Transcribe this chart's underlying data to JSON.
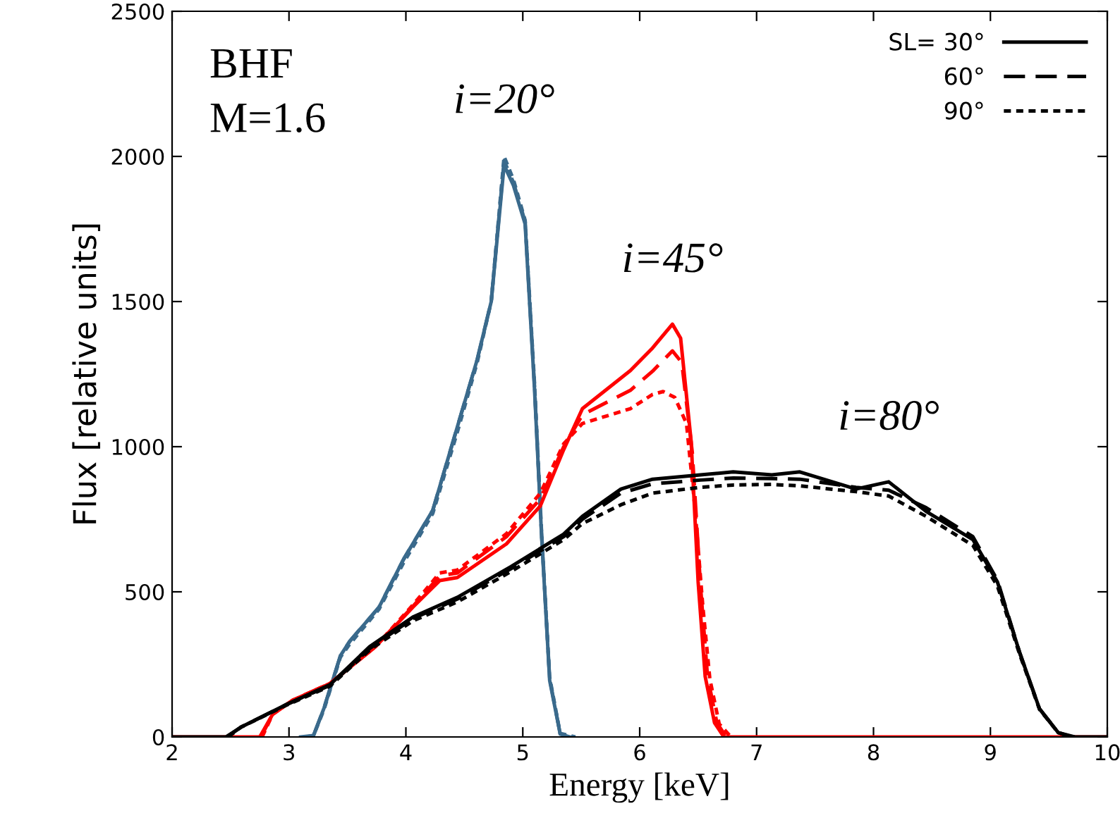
{
  "chart_data": {
    "type": "line",
    "xlabel": "Energy [keV]",
    "ylabel": "Flux [relative units]",
    "xlim": [
      2,
      10
    ],
    "ylim": [
      0,
      2500
    ],
    "xticks": [
      2,
      3,
      4,
      5,
      6,
      7,
      8,
      9,
      10
    ],
    "yticks": [
      0,
      500,
      1000,
      1500,
      2000,
      2500
    ],
    "grid": false,
    "legend": "top right",
    "marker": "none",
    "annotations": [
      "BHF",
      "M=1.6",
      {
        "text": "i=20°",
        "x": 4.84,
        "y": 1970
      },
      {
        "text": "i=45°",
        "x": 6.28,
        "y": 1422
      },
      {
        "text": "i=80°",
        "x": 8.13,
        "y": 879
      }
    ],
    "series": [
      {
        "color": "#3a6a8c",
        "line_style": "solid",
        "x": [
          3.1,
          3.21,
          3.3,
          3.44,
          3.52,
          3.77,
          3.98,
          4.23,
          4.44,
          4.61,
          4.73,
          4.84,
          4.92,
          5.02,
          5.1,
          5.16,
          5.23,
          5.32,
          5.4
        ],
        "values": [
          0,
          5,
          100,
          280,
          330,
          447,
          612,
          781,
          1068,
          1300,
          1500,
          1970,
          1900,
          1767,
          1200,
          699,
          194,
          10,
          0
        ]
      },
      {
        "color": "#3a6a8c",
        "line_style": "dashed",
        "x": [
          3.21,
          3.3,
          3.44,
          3.52,
          3.77,
          3.98,
          4.23,
          4.44,
          4.61,
          4.73,
          4.84,
          4.92,
          5.02,
          5.1,
          5.16,
          5.23,
          5.32,
          5.42
        ],
        "values": [
          5,
          100,
          280,
          330,
          447,
          612,
          781,
          1068,
          1300,
          1500,
          1985,
          1910,
          1775,
          1210,
          705,
          200,
          10,
          0
        ]
      },
      {
        "color": "#3a6a8c",
        "line_style": "dotted",
        "x": [
          3.15,
          3.21,
          3.3,
          3.44,
          3.52,
          3.77,
          3.98,
          4.23,
          4.44,
          4.61,
          4.73,
          4.84,
          4.92,
          5.02,
          5.1,
          5.16,
          5.23,
          5.32,
          5.45
        ],
        "values": [
          0,
          5,
          95,
          275,
          320,
          440,
          600,
          770,
          1050,
          1290,
          1500,
          2000,
          1920,
          1780,
          1220,
          710,
          205,
          12,
          0
        ]
      },
      {
        "color": "#ff0000",
        "line_style": "solid",
        "x": [
          2,
          2.75,
          2.86,
          3.03,
          3.35,
          3.74,
          4.06,
          4.29,
          4.44,
          4.86,
          5.15,
          5.35,
          5.51,
          5.92,
          6.11,
          6.28,
          6.35,
          6.44,
          6.5,
          6.56,
          6.64,
          6.72,
          10
        ],
        "values": [
          0,
          0,
          78,
          126,
          184,
          311,
          447,
          539,
          549,
          665,
          796,
          990,
          1131,
          1262,
          1340,
          1422,
          1374,
          1019,
          534,
          209,
          49,
          0,
          0
        ]
      },
      {
        "color": "#ff0000",
        "line_style": "dashed",
        "x": [
          2.76,
          2.86,
          3.03,
          3.35,
          3.74,
          4.06,
          4.29,
          4.44,
          4.86,
          5.15,
          5.35,
          5.51,
          5.92,
          6.11,
          6.28,
          6.36,
          6.45,
          6.52,
          6.58,
          6.66,
          6.74
        ],
        "values": [
          0,
          78,
          126,
          184,
          311,
          450,
          555,
          565,
          690,
          820,
          1000,
          1110,
          1194,
          1260,
          1330,
          1290,
          980,
          520,
          209,
          49,
          0
        ]
      },
      {
        "color": "#ff0000",
        "line_style": "dotted",
        "x": [
          2.77,
          2.86,
          3.03,
          3.35,
          3.74,
          4.06,
          4.29,
          4.44,
          4.86,
          5.15,
          5.35,
          5.51,
          5.92,
          6.11,
          6.2,
          6.3,
          6.4,
          6.47,
          6.54,
          6.6,
          6.68,
          6.78
        ],
        "values": [
          0,
          78,
          126,
          184,
          311,
          455,
          565,
          575,
          700,
          840,
          1010,
          1080,
          1131,
          1180,
          1190,
          1170,
          1080,
          800,
          450,
          200,
          45,
          0
        ]
      },
      {
        "color": "#000000",
        "name": "SL= 30°",
        "line_style": "solid",
        "x": [
          2,
          2.46,
          2.59,
          2.98,
          3.35,
          3.69,
          4.06,
          4.44,
          4.9,
          5.35,
          5.51,
          5.84,
          6.11,
          6.52,
          6.8,
          7.13,
          7.37,
          7.85,
          8.13,
          8.45,
          8.85,
          9.06,
          9.25,
          9.42,
          9.58,
          9.7,
          10
        ],
        "values": [
          0,
          0,
          34,
          112,
          180,
          311,
          413,
          481,
          587,
          699,
          760,
          854,
          888,
          903,
          913,
          903,
          913,
          854,
          879,
          777,
          680,
          534,
          291,
          97,
          15,
          0,
          0
        ]
      },
      {
        "color": "#000000",
        "name": "60°",
        "line_style": "dashed",
        "x": [
          2.47,
          2.59,
          2.98,
          3.35,
          3.69,
          4.06,
          4.44,
          4.9,
          5.35,
          5.51,
          5.84,
          6.11,
          6.52,
          6.8,
          7.13,
          7.37,
          7.85,
          8.13,
          8.45,
          8.85,
          9.06,
          9.25,
          9.42,
          9.58,
          9.72
        ],
        "values": [
          0,
          34,
          112,
          178,
          305,
          408,
          475,
          580,
          690,
          750,
          840,
          872,
          885,
          892,
          890,
          888,
          860,
          850,
          790,
          690,
          540,
          291,
          97,
          15,
          0
        ]
      },
      {
        "color": "#000000",
        "name": "90°",
        "line_style": "dotted",
        "x": [
          2.48,
          2.59,
          2.98,
          3.35,
          3.69,
          4.06,
          4.44,
          4.9,
          5.35,
          5.51,
          5.84,
          6.11,
          6.52,
          6.8,
          7.13,
          7.37,
          7.85,
          8.13,
          8.45,
          8.85,
          9.06,
          9.25,
          9.42,
          9.58,
          9.68
        ],
        "values": [
          0,
          34,
          110,
          175,
          300,
          400,
          465,
          570,
          680,
          735,
          800,
          840,
          860,
          868,
          870,
          865,
          845,
          830,
          760,
          660,
          520,
          285,
          95,
          15,
          0
        ]
      }
    ]
  }
}
